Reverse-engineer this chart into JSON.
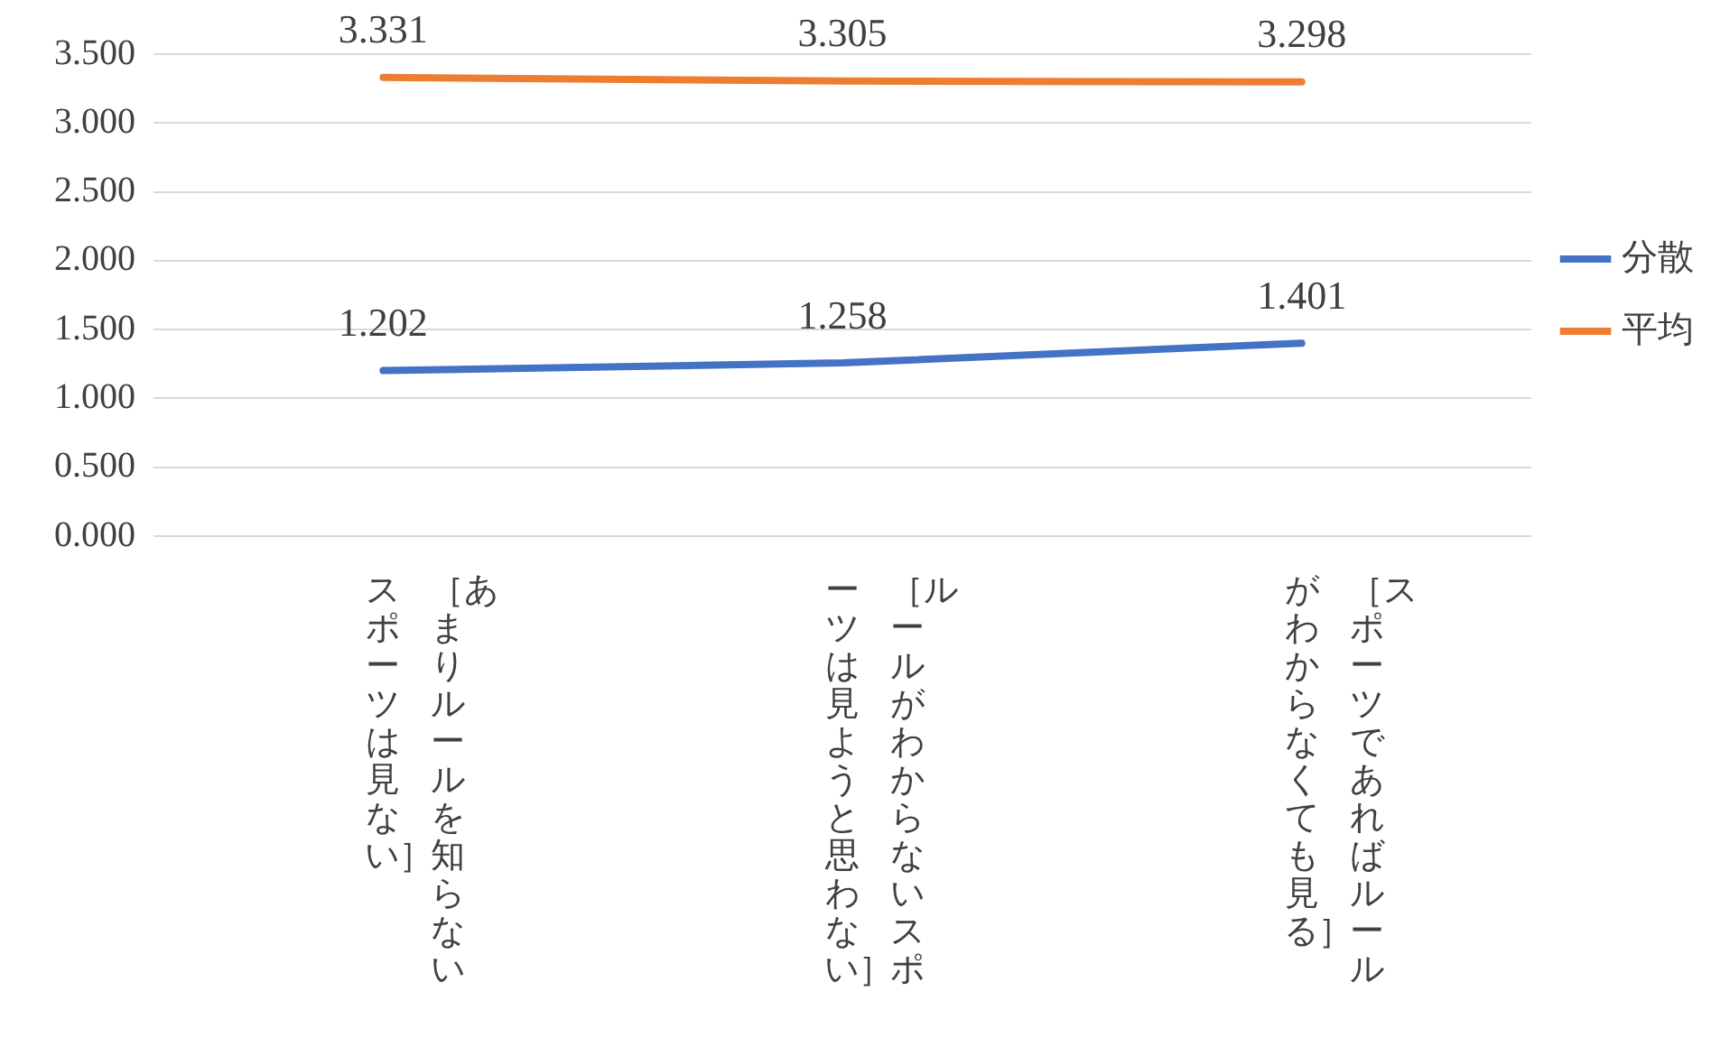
{
  "chart_data": {
    "type": "line",
    "categories": [
      "［あまりルールを知らないスポーツは見ない］",
      "［ルールがわからないスポーツは見ようと思わない］",
      "［スポーツであればルールがわからなくても見る］"
    ],
    "series": [
      {
        "name": "分散",
        "color": "#4472c4",
        "values": [
          1.202,
          1.258,
          1.401
        ]
      },
      {
        "name": "平均",
        "color": "#ed7d31",
        "values": [
          3.331,
          3.305,
          3.298
        ]
      }
    ],
    "ylim": [
      0,
      3.5
    ],
    "yticks": [
      {
        "value": 0,
        "label": "0.000"
      },
      {
        "value": 0.5,
        "label": "0.500"
      },
      {
        "value": 1,
        "label": "1.000"
      },
      {
        "value": 1.5,
        "label": "1.500"
      },
      {
        "value": 2,
        "label": "2.000"
      },
      {
        "value": 2.5,
        "label": "2.500"
      },
      {
        "value": 3,
        "label": "3.000"
      },
      {
        "value": 3.5,
        "label": "3.500"
      }
    ],
    "grid": "y",
    "legend": "right",
    "marker": "none",
    "line_style": "solid",
    "data_labels": true
  }
}
